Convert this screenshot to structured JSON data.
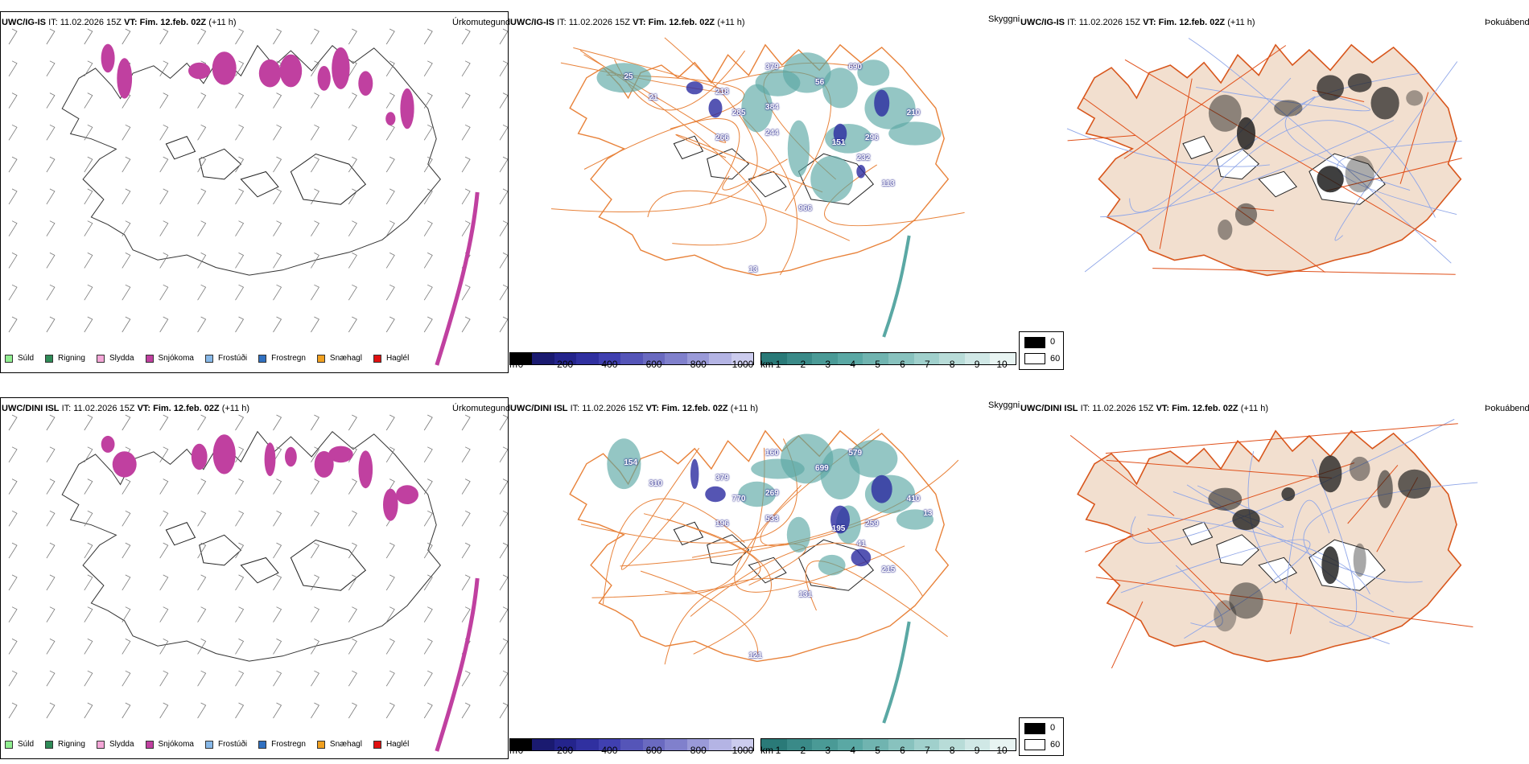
{
  "rows": [
    {
      "model": "UWC/IG-IS",
      "it_label": "IT:",
      "it_value": "11.02.2026 15Z",
      "vt_label": "VT:",
      "vt_value": "Fim. 12.feb. 02Z",
      "lead": "(+11 h)",
      "cloudbase_labels": [
        "690",
        "218",
        "379",
        "56",
        "285",
        "384",
        "244",
        "210",
        "266",
        "151",
        "296",
        "232",
        "113",
        "966",
        "13",
        "25",
        "21"
      ]
    },
    {
      "model": "UWC/DINI ISL",
      "it_label": "IT:",
      "it_value": "11.02.2026 15Z",
      "vt_label": "VT:",
      "vt_value": "Fim. 12.feb. 02Z",
      "lead": "(+11 h)",
      "cloudbase_labels": [
        "579",
        "379",
        "160",
        "699",
        "770",
        "269",
        "533",
        "410",
        "196",
        "195",
        "259",
        "41",
        "215",
        "131",
        "121",
        "154",
        "310",
        "13"
      ]
    }
  ],
  "fields": {
    "precip_type": "Úrkomutegund",
    "cloud": "Skyggni",
    "cover": "Þokuábendi"
  },
  "precip_legend": [
    {
      "label": "Súld",
      "color": "#90ee90"
    },
    {
      "label": "Rigning",
      "color": "#2e8b57"
    },
    {
      "label": "Slydda",
      "color": "#f4a6d7"
    },
    {
      "label": "Snjókoma",
      "color": "#c040a0"
    },
    {
      "label": "Frostúði",
      "color": "#87b8e8"
    },
    {
      "label": "Frostregn",
      "color": "#3070c0"
    },
    {
      "label": "Snæhagl",
      "color": "#f0a020"
    },
    {
      "label": "Haglél",
      "color": "#e01010"
    }
  ],
  "height_colorbar": {
    "unit": "m",
    "ticks": [
      "0",
      "200",
      "400",
      "600",
      "800",
      "1000"
    ],
    "colors": [
      "#000000",
      "#1a1a70",
      "#24248c",
      "#3030a0",
      "#4040b0",
      "#5555b8",
      "#6a6ac0",
      "#8080cc",
      "#9a9ad8",
      "#b4b4e4",
      "#ccccee"
    ]
  },
  "visibility_colorbar": {
    "unit": "km",
    "ticks": [
      "1",
      "2",
      "3",
      "4",
      "5",
      "6",
      "7",
      "8",
      "9",
      "10"
    ],
    "colors": [
      "#2a7a78",
      "#3a8a88",
      "#4a9a96",
      "#5aa8a4",
      "#70b4b0",
      "#88c2be",
      "#a0d0cc",
      "#b8dcd8",
      "#d0e8e6",
      "#e8f4f2"
    ]
  },
  "cover_legend": {
    "min": "0",
    "max": "60"
  }
}
